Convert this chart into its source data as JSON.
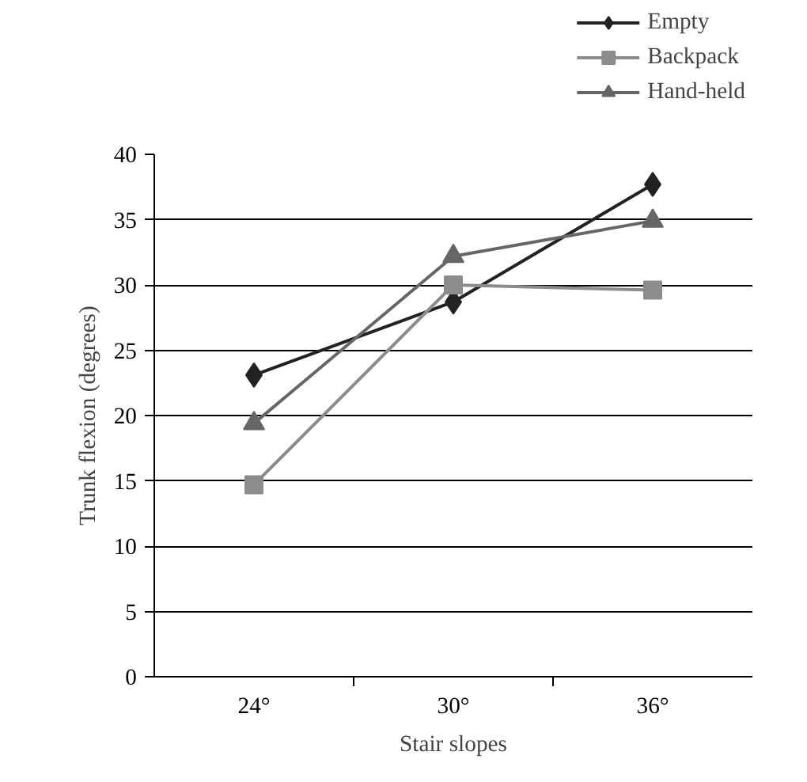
{
  "chart_data": {
    "type": "line",
    "xlabel": "Stair slopes",
    "ylabel": "Trunk flexion (degrees)",
    "categories": [
      "24°",
      "30°",
      "36°"
    ],
    "series": [
      {
        "name": "Empty",
        "color": "#222222",
        "marker": "diamond",
        "values": [
          23.1,
          28.7,
          37.7
        ]
      },
      {
        "name": "Backpack",
        "color": "#8c8c8c",
        "marker": "square",
        "values": [
          14.7,
          30.0,
          29.6
        ]
      },
      {
        "name": "Hand-held",
        "color": "#666666",
        "marker": "triangle",
        "values": [
          19.4,
          32.2,
          34.9
        ]
      }
    ],
    "ylim": [
      0,
      40
    ],
    "yticks": [
      0,
      5,
      10,
      15,
      20,
      25,
      30,
      35,
      40
    ],
    "grid": "y",
    "legend": "top right",
    "line_style": "solid"
  }
}
